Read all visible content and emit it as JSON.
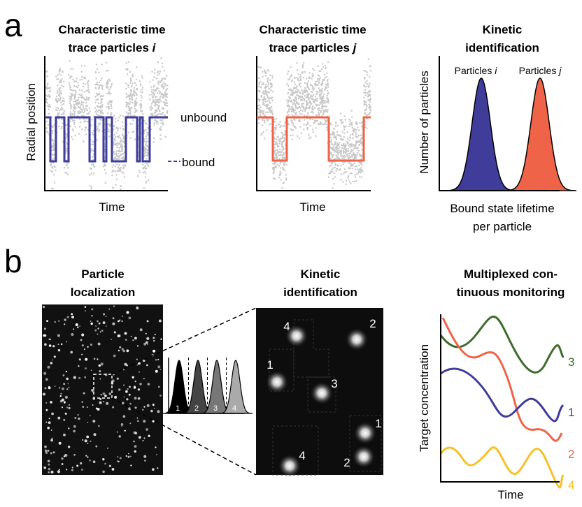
{
  "panel_a": {
    "label": "a",
    "trace_i": {
      "title": [
        "Characteristic time",
        "trace particles "
      ],
      "title_var": "i",
      "y_label": "Radial position",
      "x_label": "Time",
      "state_labels": [
        "unbound",
        "bound"
      ]
    },
    "trace_j": {
      "title": [
        "Characteristic time",
        "trace particles "
      ],
      "title_var": "j",
      "x_label": "Time"
    },
    "identification": {
      "title": [
        "Kinetic",
        "identification"
      ],
      "peak_labels": [
        {
          "text": "Particles ",
          "var": "i"
        },
        {
          "text": "Particles ",
          "var": "j"
        }
      ],
      "y_label": "Number of particles",
      "x_label": [
        "Bound state lifetime",
        "per particle"
      ]
    }
  },
  "panel_b": {
    "label": "b",
    "localization": {
      "title": [
        "Particle",
        "localization"
      ],
      "inset_labels": [
        "1",
        "2",
        "3",
        "4"
      ]
    },
    "identification": {
      "title": [
        "Kinetic",
        "identification"
      ],
      "spot_labels": [
        "4",
        "2",
        "1",
        "3",
        "1",
        "2",
        "4"
      ]
    },
    "monitoring": {
      "title": [
        "Multiplexed con-",
        "tinuous monitoring"
      ],
      "y_label": "Target concentration",
      "x_label": "Time",
      "curve_labels": [
        "3",
        "1",
        "2",
        "4"
      ]
    }
  }
}
